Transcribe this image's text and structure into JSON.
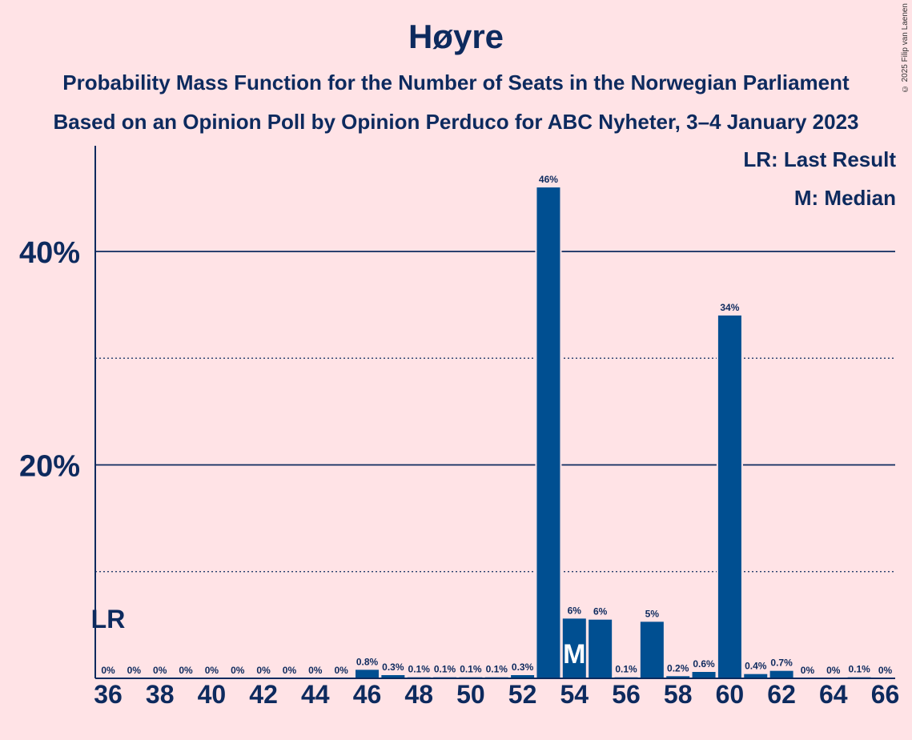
{
  "title": "Høyre",
  "subtitle1": "Probability Mass Function for the Number of Seats in the Norwegian Parliament",
  "subtitle2": "Based on an Opinion Poll by Opinion Perduco for ABC Nyheter, 3–4 January 2023",
  "copyright": "© 2025 Filip van Laenen",
  "legend": {
    "last_result": "LR: Last Result",
    "median": "M: Median"
  },
  "colors": {
    "bar": "#004f91",
    "background": "#ffe3e6",
    "text": "#0d2a5e"
  },
  "chart_data": {
    "type": "bar",
    "title": "Høyre",
    "x": [
      36,
      37,
      38,
      39,
      40,
      41,
      42,
      43,
      44,
      45,
      46,
      47,
      48,
      49,
      50,
      51,
      52,
      53,
      54,
      55,
      56,
      57,
      58,
      59,
      60,
      61,
      62,
      63,
      64,
      65,
      66
    ],
    "values": [
      0,
      0,
      0,
      0,
      0,
      0,
      0,
      0,
      0,
      0,
      0.8,
      0.3,
      0.1,
      0.1,
      0.1,
      0.1,
      0.3,
      46,
      5.6,
      5.5,
      0.1,
      5.3,
      0.2,
      0.6,
      34,
      0.4,
      0.7,
      0,
      0,
      0.1,
      0
    ],
    "labels": [
      "0%",
      "0%",
      "0%",
      "0%",
      "0%",
      "0%",
      "0%",
      "0%",
      "0%",
      "0%",
      "0.8%",
      "0.3%",
      "0.1%",
      "0.1%",
      "0.1%",
      "0.1%",
      "0.3%",
      "46%",
      "6%",
      "6%",
      "0.1%",
      "5%",
      "0.2%",
      "0.6%",
      "34%",
      "0.4%",
      "0.7%",
      "0%",
      "0%",
      "0.1%",
      "0%"
    ],
    "x_ticks": [
      "36",
      "38",
      "40",
      "42",
      "44",
      "46",
      "48",
      "50",
      "52",
      "54",
      "56",
      "58",
      "60",
      "62",
      "64",
      "66"
    ],
    "y_ticks": [
      {
        "value": 20,
        "label": "20%"
      },
      {
        "value": 40,
        "label": "40%"
      }
    ],
    "dotted_gridlines": [
      10,
      30
    ],
    "ylim": [
      0,
      50
    ],
    "last_result": {
      "seat": 36,
      "label": "LR"
    },
    "median": {
      "seat": 54,
      "label": "M"
    },
    "legend_position": "top-right"
  }
}
